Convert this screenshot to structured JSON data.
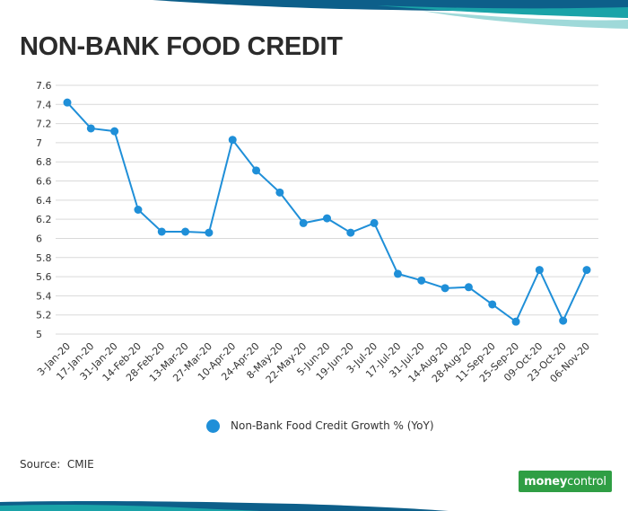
{
  "title": "NON-BANK FOOD CREDIT",
  "source": "Source:  CMIE",
  "logo": {
    "part1": "money",
    "part2": "control"
  },
  "colors": {
    "series": "#1f8fd8",
    "grid": "#d9d9d9",
    "band_dark": "#0d5f8a",
    "band_teal": "#1aa3a8",
    "band_light": "#9fd9d9",
    "logo_green": "#2f9e44"
  },
  "chart_data": {
    "type": "line",
    "title": "",
    "xlabel": "",
    "ylabel": "",
    "ylim": [
      5,
      7.6
    ],
    "y_ticks": [
      "7.6",
      "7.4",
      "7.2",
      "7",
      "6.8",
      "6.6",
      "6.4",
      "6.2",
      "6",
      "5.8",
      "5.6",
      "5.4",
      "5.2",
      "5"
    ],
    "grid": true,
    "legend_position": "bottom",
    "categories": [
      "3-Jan-20",
      "17-Jan-20",
      "31-Jan-20",
      "14-Feb-20",
      "28-Feb-20",
      "13-Mar-20",
      "27-Mar-20",
      "10-Apr-20",
      "24-Apr-20",
      "8-May-20",
      "22-May-20",
      "5-Jun-20",
      "19-Jun-20",
      "3-Jul-20",
      "17-Jul-20",
      "31-Jul-20",
      "14-Aug-20",
      "28-Aug-20",
      "11-Sep-20",
      "25-Sep-20",
      "09-Oct-20",
      "23-Oct-20",
      "06-Nov-20"
    ],
    "series": [
      {
        "name": "Non-Bank Food Credit Growth % (YoY)",
        "values": [
          7.42,
          7.15,
          7.12,
          6.3,
          6.07,
          6.07,
          6.06,
          7.03,
          6.71,
          6.48,
          6.16,
          6.21,
          6.06,
          6.16,
          5.63,
          5.56,
          5.48,
          5.49,
          5.31,
          5.13,
          5.67,
          5.14,
          5.67
        ]
      }
    ]
  }
}
